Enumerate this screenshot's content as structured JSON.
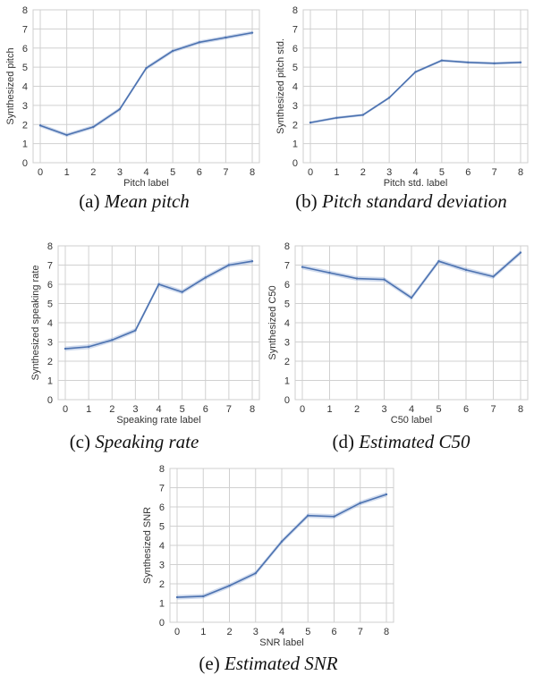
{
  "colors": {
    "line": "#4c72b0",
    "band": "#a9bde0",
    "grid": "#d0d0d0",
    "background": "#ffffff"
  },
  "chart_data": [
    {
      "id": "a",
      "type": "line",
      "caption_prefix": "(a)",
      "caption_title": "Mean pitch",
      "xlabel": "Pitch label",
      "ylabel": "Synthesized pitch",
      "x": [
        0,
        1,
        2,
        3,
        4,
        5,
        6,
        7,
        8
      ],
      "values": [
        1.95,
        1.45,
        1.87,
        2.8,
        4.95,
        5.85,
        6.3,
        6.55,
        6.8
      ],
      "band": 0.1,
      "xlim": [
        0,
        8
      ],
      "ylim": [
        0,
        8
      ],
      "xticks": [
        "0",
        "1",
        "2",
        "3",
        "4",
        "5",
        "6",
        "7",
        "8"
      ],
      "yticks": [
        "0",
        "1",
        "2",
        "3",
        "4",
        "5",
        "6",
        "7",
        "8"
      ],
      "grid": true
    },
    {
      "id": "b",
      "type": "line",
      "caption_prefix": "(b)",
      "caption_title": "Pitch standard deviation",
      "xlabel": "Pitch std. label",
      "ylabel": "Synthesized pitch std.",
      "x": [
        0,
        1,
        2,
        3,
        4,
        5,
        6,
        7,
        8
      ],
      "values": [
        2.1,
        2.35,
        2.5,
        3.4,
        4.75,
        5.35,
        5.25,
        5.2,
        5.25
      ],
      "band": 0.07,
      "xlim": [
        0,
        8
      ],
      "ylim": [
        0,
        8
      ],
      "xticks": [
        "0",
        "1",
        "2",
        "3",
        "4",
        "5",
        "6",
        "7",
        "8"
      ],
      "yticks": [
        "0",
        "1",
        "2",
        "3",
        "4",
        "5",
        "6",
        "7",
        "8"
      ],
      "grid": true
    },
    {
      "id": "c",
      "type": "line",
      "caption_prefix": "(c)",
      "caption_title": "Speaking rate",
      "xlabel": "Speaking rate label",
      "ylabel": "Synthesized speaking rate",
      "x": [
        0,
        1,
        2,
        3,
        4,
        5,
        6,
        7,
        8
      ],
      "values": [
        2.65,
        2.75,
        3.1,
        3.6,
        6.0,
        5.6,
        6.35,
        7.0,
        7.2
      ],
      "band": 0.12,
      "xlim": [
        0,
        8
      ],
      "ylim": [
        0,
        8
      ],
      "xticks": [
        "0",
        "1",
        "2",
        "3",
        "4",
        "5",
        "6",
        "7",
        "8"
      ],
      "yticks": [
        "0",
        "1",
        "2",
        "3",
        "4",
        "5",
        "6",
        "7",
        "8"
      ],
      "grid": true
    },
    {
      "id": "d",
      "type": "line",
      "caption_prefix": "(d)",
      "caption_title": "Estimated C50",
      "xlabel": "C50 label",
      "ylabel": "Synthesized C50",
      "x": [
        0,
        1,
        2,
        3,
        4,
        5,
        6,
        7,
        8
      ],
      "values": [
        6.9,
        6.6,
        6.3,
        6.25,
        5.3,
        7.2,
        6.75,
        6.4,
        7.65
      ],
      "band": 0.12,
      "xlim": [
        0,
        8
      ],
      "ylim": [
        0,
        8
      ],
      "xticks": [
        "0",
        "1",
        "2",
        "3",
        "4",
        "5",
        "6",
        "7",
        "8"
      ],
      "yticks": [
        "0",
        "1",
        "2",
        "3",
        "4",
        "5",
        "6",
        "7",
        "8"
      ],
      "grid": true
    },
    {
      "id": "e",
      "type": "line",
      "caption_prefix": "(e)",
      "caption_title": "Estimated SNR",
      "xlabel": "SNR label",
      "ylabel": "Synthesized SNR",
      "x": [
        0,
        1,
        2,
        3,
        4,
        5,
        6,
        7,
        8
      ],
      "values": [
        1.3,
        1.35,
        1.9,
        2.55,
        4.2,
        5.55,
        5.5,
        6.2,
        6.65
      ],
      "band": 0.12,
      "xlim": [
        0,
        8
      ],
      "ylim": [
        0,
        8
      ],
      "xticks": [
        "0",
        "1",
        "2",
        "3",
        "4",
        "5",
        "6",
        "7",
        "8"
      ],
      "yticks": [
        "0",
        "1",
        "2",
        "3",
        "4",
        "5",
        "6",
        "7",
        "8"
      ],
      "grid": true
    }
  ]
}
